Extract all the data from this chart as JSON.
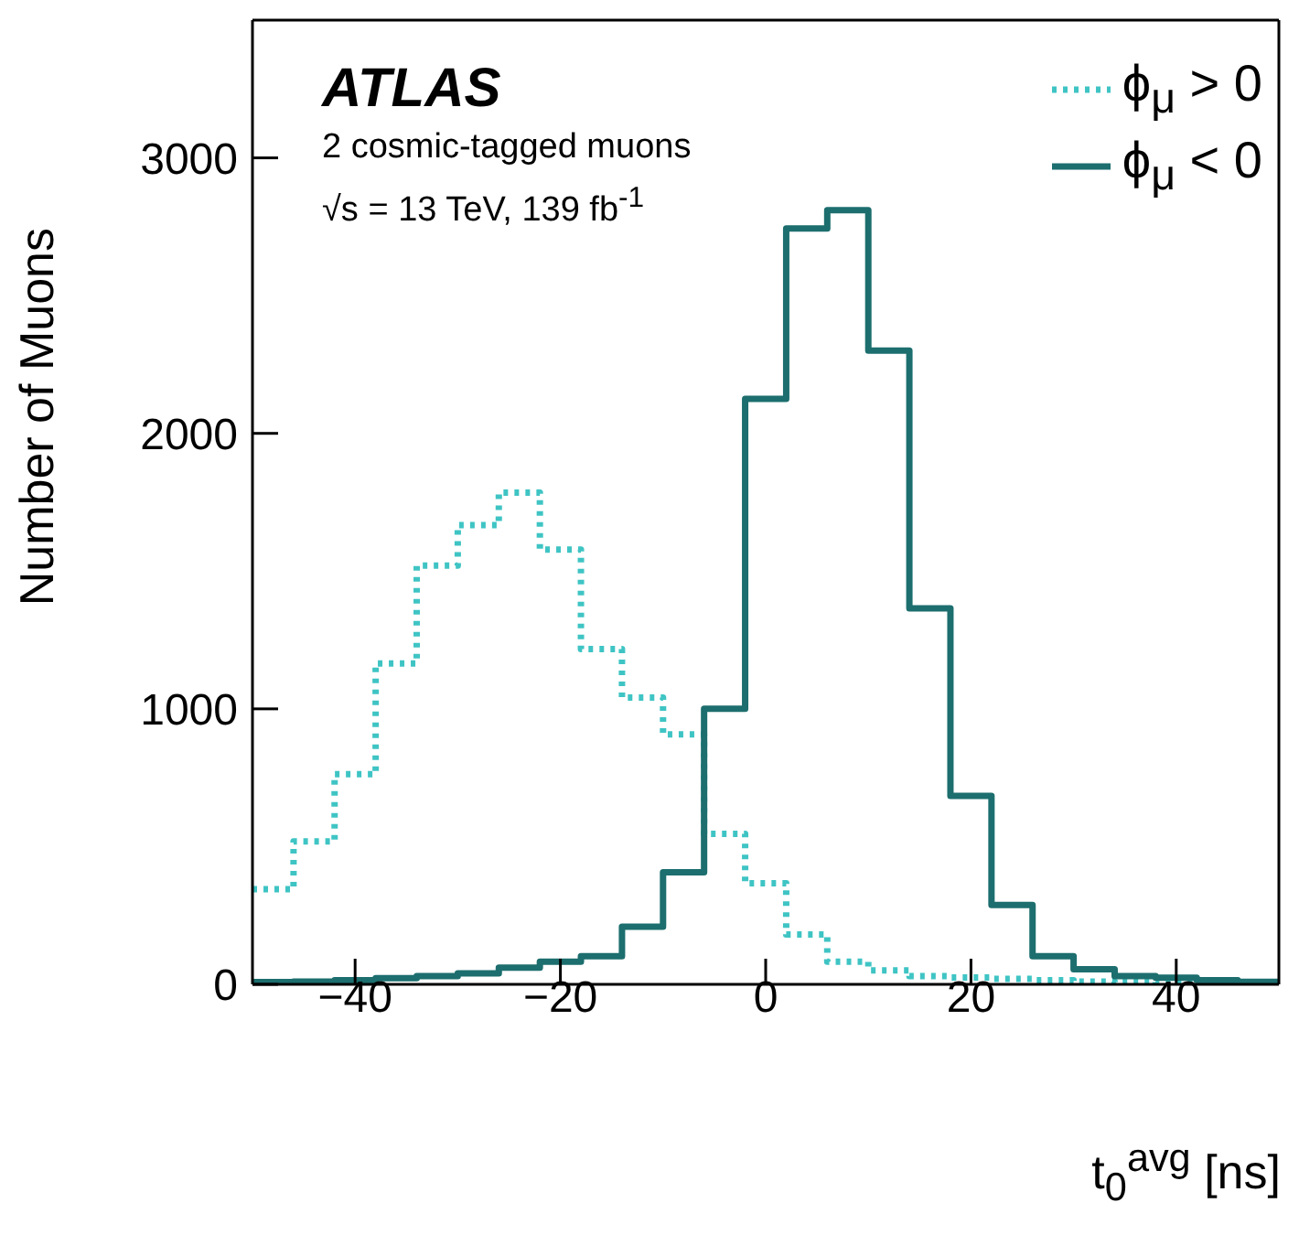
{
  "chart_data": {
    "type": "histogram",
    "title": "ATLAS",
    "subtitle": "2 cosmic-tagged muons",
    "annotations": [
      "√s = 13 TeV, 139 fb$^{-1}$"
    ],
    "xlabel": "t$_{0}$$^{avg}$ [ns]",
    "ylabel": "Number of Muons",
    "bins": [
      -50,
      -46,
      -42,
      -38,
      -34,
      -30,
      -26,
      -22,
      -18,
      -14,
      -10,
      -6,
      -2,
      2,
      6,
      10,
      14,
      18,
      22,
      26,
      30,
      34,
      38,
      42,
      46,
      50
    ],
    "series": [
      {
        "name": "ϕ$_{μ}$ > 0",
        "color": "#3fc4c4",
        "line_style": "dotted",
        "values": [
          345,
          519,
          763,
          1165,
          1520,
          1667,
          1785,
          1578,
          1217,
          1041,
          907,
          546,
          367,
          181,
          82,
          51,
          30,
          25,
          20,
          15,
          10,
          8,
          5,
          3,
          2
        ]
      },
      {
        "name": "ϕ$_{μ}$ < 0",
        "color": "#1d6e6e",
        "line_style": "solid",
        "values": [
          8,
          10,
          15,
          22,
          30,
          40,
          61,
          82,
          102,
          209,
          407,
          1000,
          2125,
          2744,
          2810,
          2300,
          1365,
          684,
          288,
          102,
          55,
          30,
          24,
          15,
          9
        ]
      }
    ],
    "xlim": [
      -50,
      50
    ],
    "xticks": [
      -40,
      -20,
      0,
      20,
      40
    ],
    "ylim": [
      0,
      3500
    ],
    "yticks": [
      0,
      1000,
      2000,
      3000
    ],
    "legend": "top right"
  }
}
